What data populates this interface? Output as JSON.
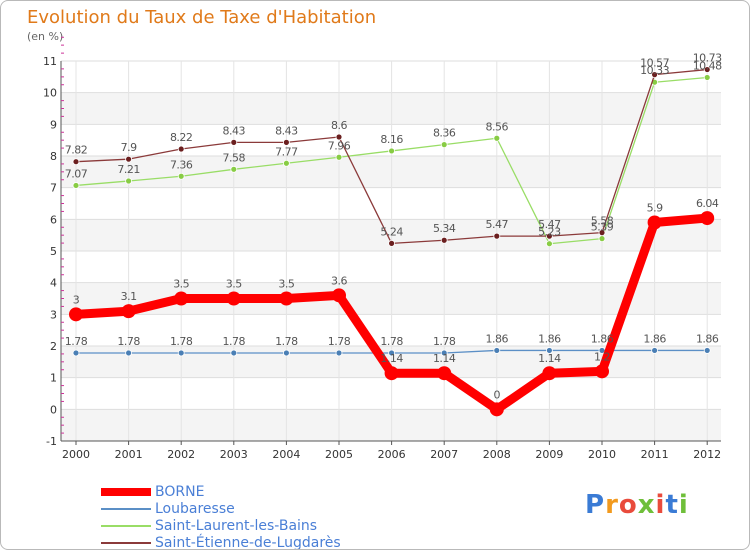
{
  "title": "Evolution du Taux de Taxe d'Habitation",
  "subtitle": "(en %)",
  "logo": {
    "letters": [
      "P",
      "r",
      "o",
      "x",
      "i",
      "t",
      "i"
    ],
    "colors": [
      "#3a7bd5",
      "#f29a1e",
      "#e94b3c",
      "#6fbf3a",
      "#e94b3c",
      "#3a7bd5",
      "#6fbf3a"
    ]
  },
  "chart_data": {
    "type": "line",
    "x": [
      "2000",
      "2001",
      "2002",
      "2003",
      "2004",
      "2005",
      "2006",
      "2007",
      "2008",
      "2009",
      "2010",
      "2011",
      "2012"
    ],
    "ylim": [
      -1,
      11
    ],
    "yticks": [
      "-1",
      "0",
      "1",
      "2",
      "3",
      "4",
      "5",
      "6",
      "7",
      "8",
      "9",
      "10",
      "11"
    ],
    "grid": true,
    "legend_position": "bottom-left",
    "series": [
      {
        "name": "BORNE",
        "color": "#ff0000",
        "values": [
          3,
          3.1,
          3.5,
          3.5,
          3.5,
          3.6,
          1.14,
          1.14,
          0,
          1.14,
          1.2,
          5.9,
          6.04
        ],
        "labels": [
          "3",
          "3.1",
          "3.5",
          "3.5",
          "3.5",
          "3.6",
          "1.14",
          "1.14",
          "0",
          "1.14",
          "1.2",
          "5.9",
          "6.04"
        ]
      },
      {
        "name": "Loubaresse",
        "color": "#5b8fc6",
        "values": [
          1.78,
          1.78,
          1.78,
          1.78,
          1.78,
          1.78,
          1.78,
          1.78,
          1.86,
          1.86,
          1.86,
          1.86,
          1.86
        ],
        "labels": [
          "1.78",
          "1.78",
          "1.78",
          "1.78",
          "1.78",
          "1.78",
          "1.78",
          "1.78",
          "1.86",
          "1.86",
          "1.86",
          "1.86",
          "1.86"
        ]
      },
      {
        "name": "Saint-Laurent-les-Bains",
        "color": "#99dd66",
        "values": [
          7.07,
          7.21,
          7.36,
          7.58,
          7.77,
          7.96,
          8.16,
          8.36,
          8.56,
          5.23,
          5.39,
          10.33,
          10.48
        ],
        "labels": [
          "7.07",
          "7.21",
          "7.36",
          "7.58",
          "7.77",
          "7.96",
          "8.16",
          "8.36",
          "8.56",
          "5.23",
          "5.39",
          "10.33",
          "10.48"
        ]
      },
      {
        "name": "Saint-Étienne-de-Lugdarès",
        "color": "#8b3a3a",
        "values": [
          7.82,
          7.9,
          8.22,
          8.43,
          8.43,
          8.6,
          5.24,
          5.34,
          5.47,
          5.47,
          5.58,
          10.57,
          10.73
        ],
        "labels": [
          "7.82",
          "7.9",
          "8.22",
          "8.43",
          "8.43",
          "8.6",
          "5.24",
          "5.34",
          "5.47",
          "5.47",
          "5.58",
          "10.57",
          "10.73"
        ]
      }
    ]
  }
}
